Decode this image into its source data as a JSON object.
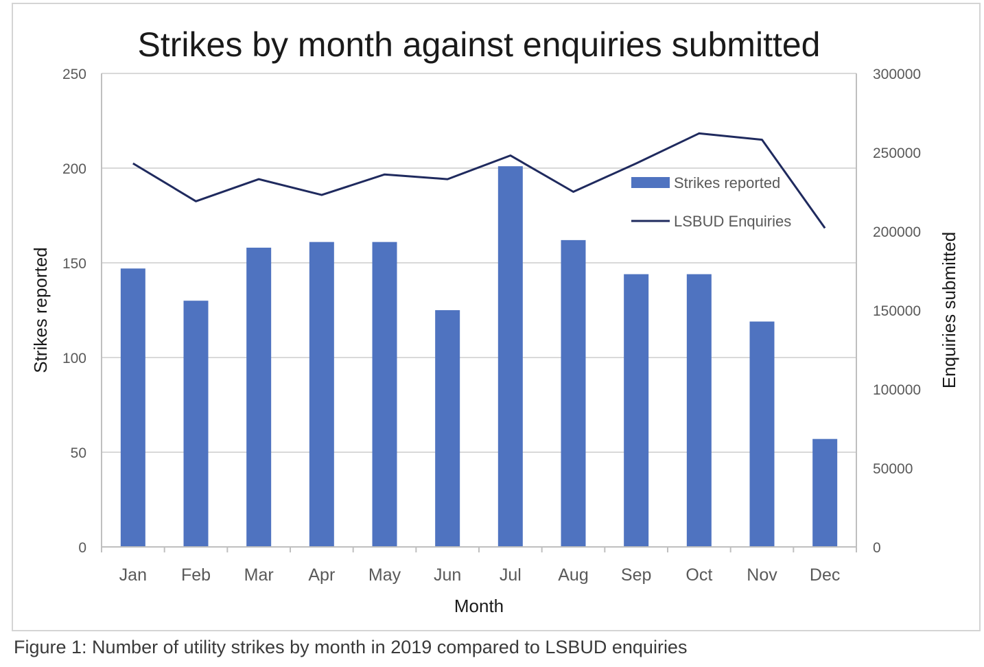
{
  "caption": "Figure 1: Number of utility strikes by month in 2019 compared to LSBUD enquiries",
  "colors": {
    "bar": "#4f73c0",
    "line": "#1f2a5e",
    "grid": "#d9d9d9",
    "axis": "#bfbfbf",
    "tick_label": "#595959",
    "text": "#1a1a1a"
  },
  "chart_data": {
    "type": "bar",
    "title": "Strikes by month against enquiries submitted",
    "xlabel": "Month",
    "ylabel": "Strikes reported",
    "y2label": "Enquiries submitted",
    "categories": [
      "Jan",
      "Feb",
      "Mar",
      "Apr",
      "May",
      "Jun",
      "Jul",
      "Aug",
      "Sep",
      "Oct",
      "Nov",
      "Dec"
    ],
    "ylim": [
      0,
      250
    ],
    "y_ticks": [
      "0",
      "50",
      "100",
      "150",
      "200",
      "250"
    ],
    "y2lim": [
      0,
      300000
    ],
    "y2_ticks": [
      "0",
      "50000",
      "100000",
      "150000",
      "200000",
      "250000",
      "300000"
    ],
    "grid": true,
    "legend_position": "top-right",
    "series": [
      {
        "name": "Strikes reported",
        "type": "bar",
        "axis": "left",
        "values": [
          147,
          130,
          158,
          161,
          161,
          125,
          201,
          162,
          144,
          144,
          119,
          57
        ]
      },
      {
        "name": "LSBUD Enquiries",
        "type": "line",
        "axis": "right",
        "values": [
          243000,
          219000,
          233000,
          223000,
          236000,
          233000,
          248000,
          225000,
          243000,
          262000,
          258000,
          202000
        ]
      }
    ]
  }
}
